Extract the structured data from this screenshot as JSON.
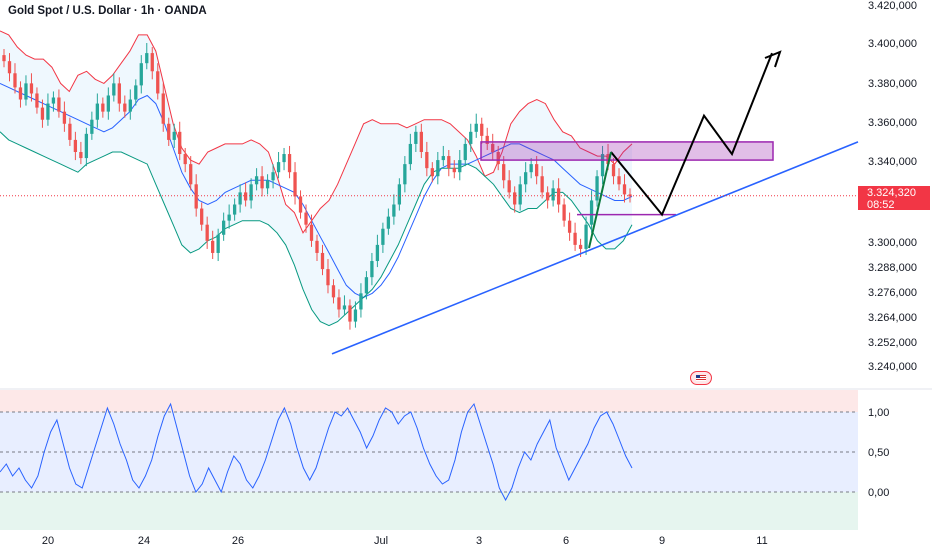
{
  "header": {
    "title": "Gold Spot / U.S. Dollar · 1h · OANDA"
  },
  "price_tag": {
    "price": "3.324,320",
    "countdown": "08:52"
  },
  "colors": {
    "up": "#26a69a",
    "down": "#ef5350",
    "bb_upper": "#f23645",
    "bb_lower": "#089981",
    "bb_basis": "#2962ff",
    "trend": "#2962ff",
    "projection": "#000000",
    "zone": "#9c27b0",
    "oscillator": "#2962ff",
    "price_tag": "#f23645"
  },
  "icons": {
    "event_flag": "us-flag-icon"
  },
  "chart_data": [
    {
      "type": "candlestick",
      "title": "Gold Spot / U.S. Dollar · 1h · OANDA",
      "ylim": [
        3230,
        3420
      ],
      "y_ticks": [
        "3.420,000",
        "3.400,000",
        "3.380,000",
        "3.360,000",
        "3.340,000",
        "3.300,000",
        "3.288,000",
        "3.276,000",
        "3.264,000",
        "3.252,000",
        "3.240,000"
      ],
      "x_ticks": [
        "20",
        "24",
        "26",
        "Jul",
        "3",
        "6",
        "9",
        "11"
      ],
      "last_price": 3324.32,
      "candles_close": [
        3391,
        3385,
        3378,
        3372,
        3380,
        3375,
        3368,
        3362,
        3370,
        3373,
        3366,
        3360,
        3352,
        3346,
        3343,
        3355,
        3362,
        3370,
        3366,
        3374,
        3380,
        3370,
        3366,
        3372,
        3379,
        3390,
        3395,
        3386,
        3375,
        3360,
        3352,
        3356,
        3345,
        3340,
        3330,
        3318,
        3310,
        3302,
        3296,
        3305,
        3312,
        3315,
        3320,
        3326,
        3322,
        3330,
        3334,
        3328,
        3332,
        3336,
        3341,
        3345,
        3336,
        3324,
        3316,
        3310,
        3302,
        3296,
        3288,
        3280,
        3274,
        3268,
        3270,
        3262,
        3268,
        3276,
        3284,
        3292,
        3300,
        3308,
        3314,
        3320,
        3330,
        3340,
        3350,
        3356,
        3346,
        3338,
        3334,
        3342,
        3344,
        3338,
        3336,
        3342,
        3350,
        3356,
        3360,
        3354,
        3350,
        3346,
        3340,
        3332,
        3326,
        3320,
        3330,
        3336,
        3340,
        3334,
        3326,
        3322,
        3328,
        3320,
        3312,
        3306,
        3300,
        3298,
        3310,
        3322,
        3334,
        3345,
        3340,
        3334,
        3330,
        3325,
        3324
      ],
      "bb_upper": [
        3406,
        3404,
        3398,
        3394,
        3392,
        3392,
        3388,
        3380,
        3376,
        3384,
        3386,
        3382,
        3380,
        3384,
        3390,
        3396,
        3404,
        3404,
        3396,
        3378,
        3360,
        3348,
        3342,
        3340,
        3346,
        3348,
        3350,
        3350,
        3350,
        3352,
        3350,
        3346,
        3334,
        3320,
        3316,
        3306,
        3312,
        3318,
        3322,
        3330,
        3340,
        3350,
        3360,
        3362,
        3360,
        3360,
        3360,
        3358,
        3360,
        3362,
        3362,
        3362,
        3360,
        3356,
        3352,
        3344,
        3334,
        3336,
        3346,
        3360,
        3366,
        3370,
        3372,
        3370,
        3362,
        3356,
        3354,
        3348,
        3346,
        3344,
        3344,
        3340,
        3346,
        3350
      ],
      "bb_basis": [
        3380,
        3378,
        3376,
        3374,
        3372,
        3370,
        3368,
        3366,
        3364,
        3362,
        3360,
        3358,
        3356,
        3358,
        3362,
        3366,
        3372,
        3374,
        3370,
        3360,
        3348,
        3336,
        3328,
        3322,
        3320,
        3322,
        3326,
        3328,
        3330,
        3332,
        3332,
        3332,
        3330,
        3328,
        3326,
        3320,
        3312,
        3304,
        3296,
        3288,
        3280,
        3276,
        3274,
        3276,
        3280,
        3286,
        3294,
        3304,
        3314,
        3324,
        3332,
        3338,
        3340,
        3340,
        3340,
        3342,
        3344,
        3346,
        3348,
        3350,
        3350,
        3348,
        3346,
        3344,
        3342,
        3338,
        3334,
        3330,
        3328,
        3326,
        3324,
        3322,
        3322,
        3324
      ],
      "bb_lower": [
        3356,
        3352,
        3350,
        3348,
        3346,
        3344,
        3342,
        3340,
        3338,
        3336,
        3340,
        3342,
        3344,
        3346,
        3346,
        3344,
        3342,
        3340,
        3330,
        3320,
        3310,
        3300,
        3296,
        3298,
        3302,
        3304,
        3308,
        3310,
        3312,
        3312,
        3312,
        3310,
        3306,
        3300,
        3290,
        3278,
        3268,
        3262,
        3260,
        3262,
        3266,
        3270,
        3274,
        3278,
        3284,
        3292,
        3300,
        3310,
        3320,
        3330,
        3336,
        3338,
        3338,
        3338,
        3340,
        3338,
        3334,
        3330,
        3324,
        3318,
        3316,
        3318,
        3318,
        3322,
        3326,
        3326,
        3322,
        3316,
        3310,
        3302,
        3298,
        3298,
        3302,
        3310
      ],
      "resistance_zone": [
        3342,
        3351
      ],
      "support_level": 3315,
      "trend_line": [
        [
          3246,
          "start"
        ],
        [
          3351,
          "end"
        ]
      ],
      "projection": [
        3346,
        3315,
        3364,
        3345,
        3395
      ]
    },
    {
      "type": "line",
      "ylim": [
        -0.35,
        1.25
      ],
      "y_ticks": [
        "1,00",
        "0,50",
        "0,00"
      ],
      "levels": [
        1.0,
        0.5,
        0.0
      ],
      "values": [
        0.25,
        0.35,
        0.2,
        0.3,
        0.15,
        0.05,
        0.2,
        0.5,
        0.75,
        0.9,
        0.6,
        0.3,
        0.1,
        0.05,
        0.3,
        0.55,
        0.8,
        1.05,
        0.85,
        0.6,
        0.4,
        0.15,
        0.05,
        0.2,
        0.4,
        0.7,
        0.95,
        1.1,
        0.8,
        0.5,
        0.2,
        0.0,
        0.1,
        0.3,
        0.15,
        0.0,
        0.25,
        0.45,
        0.35,
        0.15,
        0.05,
        0.2,
        0.4,
        0.65,
        0.9,
        1.05,
        0.85,
        0.55,
        0.3,
        0.15,
        0.3,
        0.55,
        0.8,
        1.0,
        0.95,
        1.05,
        0.9,
        0.75,
        0.55,
        0.7,
        0.9,
        1.05,
        1.0,
        0.85,
        0.95,
        1.0,
        0.8,
        0.55,
        0.35,
        0.2,
        0.1,
        0.15,
        0.4,
        0.75,
        1.0,
        1.1,
        0.85,
        0.6,
        0.35,
        0.05,
        -0.1,
        0.05,
        0.3,
        0.5,
        0.4,
        0.6,
        0.75,
        0.9,
        0.55,
        0.35,
        0.15,
        0.3,
        0.45,
        0.6,
        0.8,
        0.95,
        1.0,
        0.85,
        0.65,
        0.45,
        0.3
      ]
    }
  ]
}
